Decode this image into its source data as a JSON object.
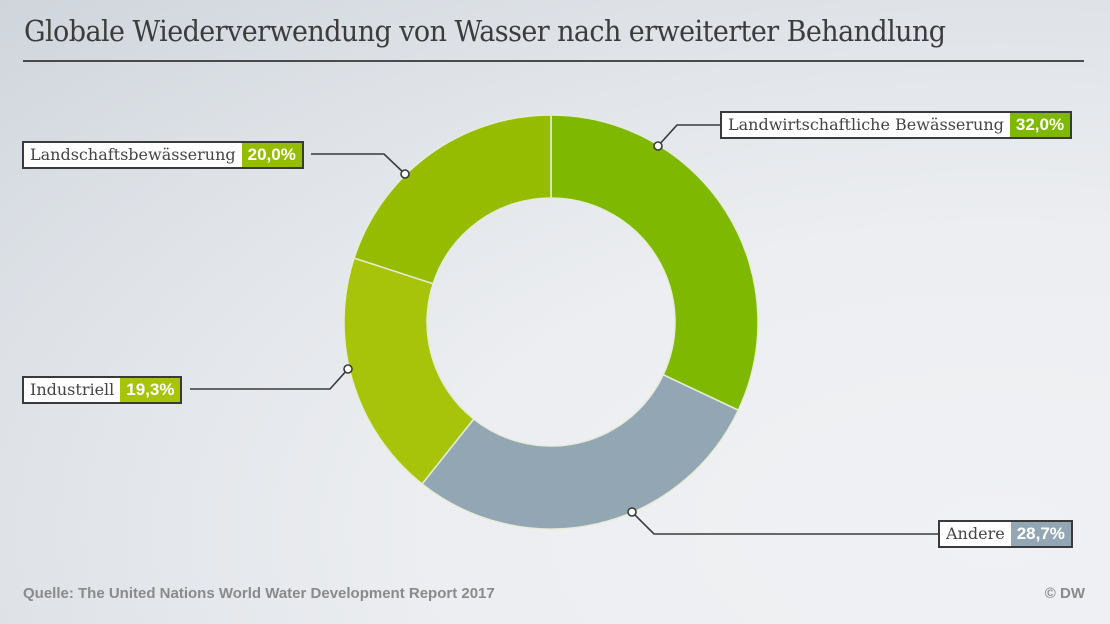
{
  "header": {
    "title": "Globale Wiederverwendung von Wasser nach erweiterter Behandlung"
  },
  "footer": {
    "source": "Quelle: The United Nations World Water Development Report 2017",
    "credit": "© DW"
  },
  "chart_data": {
    "type": "pie",
    "variant": "donut",
    "title": "Globale Wiederverwendung von Wasser nach erweiterter Behandlung",
    "start": "12 o'clock, clockwise",
    "slices": [
      {
        "label": "Landwirtschaftliche Bewässerung",
        "value": 32.0,
        "display": "32,0%",
        "color": "#7fb800",
        "label_position": "top-right"
      },
      {
        "label": "Andere",
        "value": 28.7,
        "display": "28,7%",
        "color": "#93a6b3",
        "label_position": "bottom-right"
      },
      {
        "label": "Industriell",
        "value": 19.3,
        "display": "19,3%",
        "color": "#a8c40a",
        "label_position": "left"
      },
      {
        "label": "Landschaftsbewässerung",
        "value": 20.0,
        "display": "20,0%",
        "color": "#96bc00",
        "label_position": "top-left"
      }
    ]
  }
}
